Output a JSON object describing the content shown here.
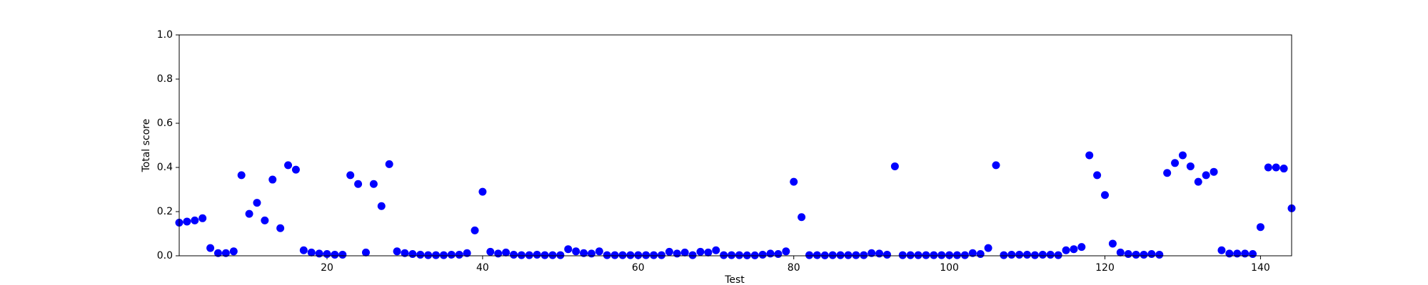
{
  "chart_data": {
    "type": "scatter",
    "xlabel": "Test",
    "ylabel": "Total score",
    "color": "#0000ff",
    "x": [
      1,
      2,
      3,
      4,
      5,
      6,
      7,
      8,
      9,
      10,
      11,
      12,
      13,
      14,
      15,
      16,
      17,
      18,
      19,
      20,
      21,
      22,
      23,
      24,
      25,
      26,
      27,
      28,
      29,
      30,
      31,
      32,
      33,
      34,
      35,
      36,
      37,
      38,
      39,
      40,
      41,
      42,
      43,
      44,
      45,
      46,
      47,
      48,
      49,
      50,
      51,
      52,
      53,
      54,
      55,
      56,
      57,
      58,
      59,
      60,
      61,
      62,
      63,
      64,
      65,
      66,
      67,
      68,
      69,
      70,
      71,
      72,
      73,
      74,
      75,
      76,
      77,
      78,
      79,
      80,
      81,
      82,
      83,
      84,
      85,
      86,
      87,
      88,
      89,
      90,
      91,
      92,
      93,
      94,
      95,
      96,
      97,
      98,
      99,
      100,
      101,
      102,
      103,
      104,
      105,
      106,
      107,
      108,
      109,
      110,
      111,
      112,
      113,
      114,
      115,
      116,
      117,
      118,
      119,
      120,
      121,
      122,
      123,
      124,
      125,
      126,
      127,
      128,
      129,
      130,
      131,
      132,
      133,
      134,
      135,
      136,
      137,
      138,
      139,
      140,
      141,
      142,
      143,
      144
    ],
    "values": [
      0.15,
      0.155,
      0.16,
      0.17,
      0.035,
      0.012,
      0.012,
      0.02,
      0.365,
      0.19,
      0.24,
      0.16,
      0.345,
      0.125,
      0.41,
      0.39,
      0.025,
      0.015,
      0.01,
      0.008,
      0.005,
      0.005,
      0.365,
      0.325,
      0.015,
      0.325,
      0.225,
      0.415,
      0.02,
      0.012,
      0.008,
      0.005,
      0.003,
      0.003,
      0.003,
      0.005,
      0.005,
      0.012,
      0.115,
      0.29,
      0.018,
      0.01,
      0.015,
      0.005,
      0.003,
      0.003,
      0.005,
      0.003,
      0.003,
      0.003,
      0.03,
      0.02,
      0.012,
      0.01,
      0.02,
      0.003,
      0.003,
      0.003,
      0.003,
      0.003,
      0.003,
      0.003,
      0.003,
      0.018,
      0.01,
      0.015,
      0.003,
      0.018,
      0.015,
      0.025,
      0.003,
      0.003,
      0.003,
      0.002,
      0.002,
      0.005,
      0.01,
      0.008,
      0.02,
      0.335,
      0.175,
      0.003,
      0.003,
      0.002,
      0.003,
      0.003,
      0.003,
      0.003,
      0.003,
      0.012,
      0.01,
      0.005,
      0.405,
      0.003,
      0.003,
      0.003,
      0.003,
      0.003,
      0.003,
      0.003,
      0.003,
      0.003,
      0.012,
      0.008,
      0.035,
      0.41,
      0.003,
      0.005,
      0.005,
      0.005,
      0.003,
      0.005,
      0.005,
      0.003,
      0.025,
      0.03,
      0.04,
      0.455,
      0.365,
      0.275,
      0.055,
      0.015,
      0.008,
      0.005,
      0.005,
      0.008,
      0.005,
      0.375,
      0.42,
      0.455,
      0.405,
      0.335,
      0.365,
      0.38,
      0.025,
      0.01,
      0.01,
      0.01,
      0.008,
      0.13,
      0.4,
      0.4,
      0.395,
      0.215
    ],
    "xlim": [
      1,
      144
    ],
    "xticks": [
      20,
      40,
      60,
      80,
      100,
      120,
      140
    ],
    "ylim": [
      0,
      1
    ],
    "yticks": [
      {
        "value": 0,
        "label": "0.0"
      },
      0.2,
      0.4,
      0.6,
      0.8,
      {
        "value": 1,
        "label": "1.0"
      }
    ]
  }
}
